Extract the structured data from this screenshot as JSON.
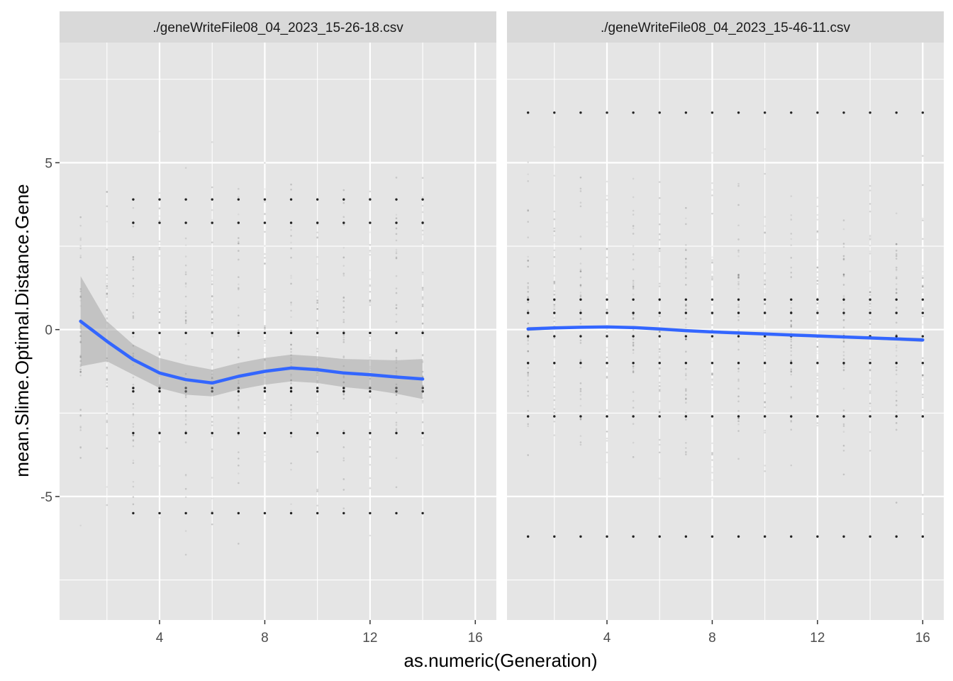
{
  "chart_data": {
    "type": "scatter",
    "xlabel": "as.numeric(Generation)",
    "ylabel": "mean.Slime.Optimal.Distance.Gene",
    "xlim": [
      0.2,
      16.8
    ],
    "ylim": [
      -8.7,
      8.6
    ],
    "x_ticks": [
      4,
      8,
      12,
      16
    ],
    "x_tick_labels": [
      "4",
      "8",
      "12",
      "16"
    ],
    "y_ticks": [
      5,
      0,
      -5
    ],
    "y_tick_labels": [
      "5",
      "0",
      "-5"
    ],
    "grid": true,
    "legend": "none",
    "colors": {
      "panel_bg": "#e5e5e5",
      "strip_bg": "#d9d9d9",
      "grid": "#ffffff",
      "smooth_line": "#3366ff",
      "ribbon": "#999999",
      "points": "#000000"
    },
    "facets": [
      {
        "strip": "./geneWriteFile08_04_2023_15-26-18.csv",
        "generations": [
          1,
          14
        ],
        "column_range": [
          -7.5,
          6.5
        ],
        "clustered_points": {
          "generations": [
            3,
            14
          ],
          "y_values": [
            3.9,
            3.2,
            -0.1,
            -1.75,
            -1.85,
            -3.1,
            -5.5
          ]
        },
        "smooth": {
          "x": [
            1,
            2,
            3,
            4,
            5,
            6,
            7,
            8,
            9,
            10,
            11,
            12,
            13,
            14
          ],
          "y": [
            0.25,
            -0.35,
            -0.9,
            -1.3,
            -1.5,
            -1.6,
            -1.4,
            -1.25,
            -1.15,
            -1.2,
            -1.3,
            -1.35,
            -1.42,
            -1.48
          ],
          "band": [
            1.35,
            0.6,
            0.45,
            0.45,
            0.45,
            0.4,
            0.4,
            0.4,
            0.4,
            0.4,
            0.42,
            0.45,
            0.5,
            0.6
          ]
        }
      },
      {
        "strip": "./geneWriteFile08_04_2023_15-46-11.csv",
        "generations": [
          1,
          16
        ],
        "column_range": [
          -6.2,
          6.5
        ],
        "clustered_points": {
          "generations": [
            1,
            16
          ],
          "y_values": [
            6.5,
            0.9,
            0.5,
            -0.2,
            -1.0,
            -2.6,
            -6.2
          ]
        },
        "smooth": {
          "x": [
            1,
            2,
            3,
            4,
            5,
            6,
            7,
            8,
            9,
            10,
            11,
            12,
            13,
            14,
            15,
            16
          ],
          "y": [
            0.02,
            0.05,
            0.07,
            0.08,
            0.06,
            0.02,
            -0.03,
            -0.07,
            -0.1,
            -0.13,
            -0.16,
            -0.19,
            -0.22,
            -0.25,
            -0.28,
            -0.31
          ],
          "band": [
            0.06,
            0.04,
            0.04,
            0.04,
            0.04,
            0.04,
            0.04,
            0.04,
            0.04,
            0.04,
            0.04,
            0.04,
            0.04,
            0.04,
            0.05,
            0.06
          ]
        }
      }
    ]
  }
}
